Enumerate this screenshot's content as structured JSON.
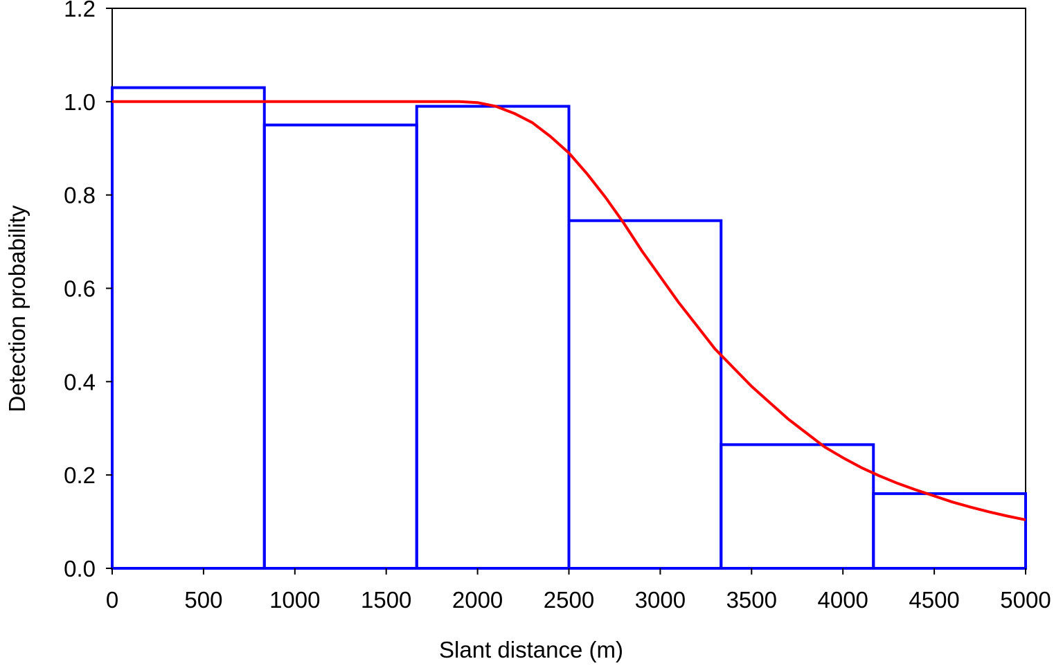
{
  "chart_data": {
    "type": "bar",
    "title": "",
    "xlabel": "Slant distance (m)",
    "ylabel": "Detection probability",
    "xlim": [
      0,
      5000
    ],
    "ylim": [
      0,
      1.2
    ],
    "x_ticks": [
      "0",
      "500",
      "1000",
      "1500",
      "2000",
      "2500",
      "3000",
      "3500",
      "4000",
      "4500",
      "5000"
    ],
    "y_ticks": [
      "0.0",
      "0.2",
      "0.4",
      "0.6",
      "0.8",
      "1.0",
      "1.2"
    ],
    "grid": false,
    "histogram": {
      "color": "#0000ff",
      "bins": [
        {
          "x0": 0,
          "x1": 833,
          "value": 1.03
        },
        {
          "x0": 833,
          "x1": 1667,
          "value": 0.95
        },
        {
          "x0": 1667,
          "x1": 2500,
          "value": 0.99
        },
        {
          "x0": 2500,
          "x1": 3333,
          "value": 0.745
        },
        {
          "x0": 3333,
          "x1": 4167,
          "value": 0.265
        },
        {
          "x0": 4167,
          "x1": 5000,
          "value": 0.16
        }
      ]
    },
    "fitted_curve": {
      "color": "#ff0000",
      "x": [
        0,
        500,
        1000,
        1500,
        1900,
        2000,
        2100,
        2200,
        2300,
        2400,
        2500,
        2600,
        2700,
        2800,
        2900,
        3000,
        3100,
        3200,
        3300,
        3400,
        3500,
        3600,
        3700,
        3800,
        3900,
        4000,
        4100,
        4200,
        4300,
        4400,
        4500,
        4600,
        4700,
        4800,
        4900,
        5000
      ],
      "y": [
        1.0,
        1.0,
        1.0,
        1.0,
        1.0,
        0.998,
        0.99,
        0.975,
        0.955,
        0.925,
        0.89,
        0.845,
        0.795,
        0.74,
        0.68,
        0.625,
        0.57,
        0.52,
        0.47,
        0.43,
        0.39,
        0.355,
        0.32,
        0.29,
        0.26,
        0.237,
        0.216,
        0.198,
        0.182,
        0.168,
        0.155,
        0.142,
        0.131,
        0.121,
        0.112,
        0.104
      ]
    }
  }
}
